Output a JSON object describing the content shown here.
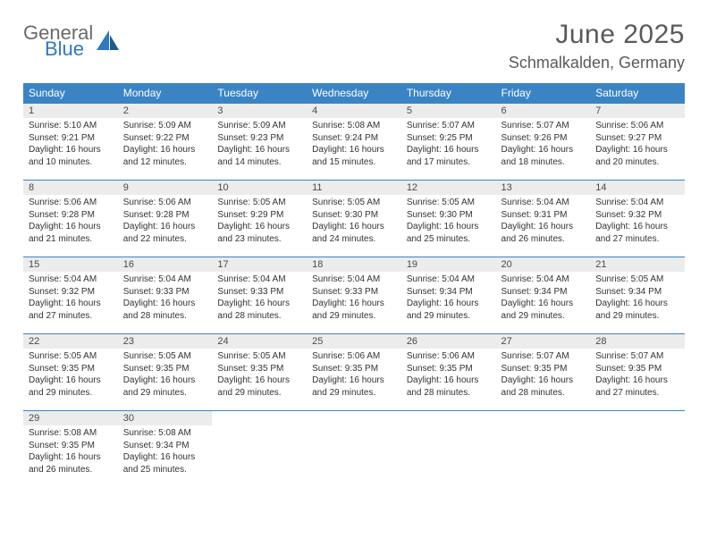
{
  "brand": {
    "name_gray": "General",
    "name_blue": "Blue"
  },
  "header": {
    "title": "June 2025",
    "location": "Schmalkalden, Germany"
  },
  "colors": {
    "header_bg": "#3b84c4",
    "header_text": "#ffffff",
    "daynum_bg": "#ececec",
    "body_text": "#333333",
    "title_text": "#5a5a5a",
    "week_border": "#3b84c4",
    "logo_gray": "#6a6a6a",
    "logo_blue": "#2f78c2"
  },
  "typography": {
    "title_fontsize": 30,
    "location_fontsize": 18,
    "dow_fontsize": 12,
    "daynum_fontsize": 11,
    "body_fontsize": 10
  },
  "days_of_week": [
    "Sunday",
    "Monday",
    "Tuesday",
    "Wednesday",
    "Thursday",
    "Friday",
    "Saturday"
  ],
  "weeks": [
    [
      {
        "n": "1",
        "sr": "Sunrise: 5:10 AM",
        "ss": "Sunset: 9:21 PM",
        "d1": "Daylight: 16 hours",
        "d2": "and 10 minutes."
      },
      {
        "n": "2",
        "sr": "Sunrise: 5:09 AM",
        "ss": "Sunset: 9:22 PM",
        "d1": "Daylight: 16 hours",
        "d2": "and 12 minutes."
      },
      {
        "n": "3",
        "sr": "Sunrise: 5:09 AM",
        "ss": "Sunset: 9:23 PM",
        "d1": "Daylight: 16 hours",
        "d2": "and 14 minutes."
      },
      {
        "n": "4",
        "sr": "Sunrise: 5:08 AM",
        "ss": "Sunset: 9:24 PM",
        "d1": "Daylight: 16 hours",
        "d2": "and 15 minutes."
      },
      {
        "n": "5",
        "sr": "Sunrise: 5:07 AM",
        "ss": "Sunset: 9:25 PM",
        "d1": "Daylight: 16 hours",
        "d2": "and 17 minutes."
      },
      {
        "n": "6",
        "sr": "Sunrise: 5:07 AM",
        "ss": "Sunset: 9:26 PM",
        "d1": "Daylight: 16 hours",
        "d2": "and 18 minutes."
      },
      {
        "n": "7",
        "sr": "Sunrise: 5:06 AM",
        "ss": "Sunset: 9:27 PM",
        "d1": "Daylight: 16 hours",
        "d2": "and 20 minutes."
      }
    ],
    [
      {
        "n": "8",
        "sr": "Sunrise: 5:06 AM",
        "ss": "Sunset: 9:28 PM",
        "d1": "Daylight: 16 hours",
        "d2": "and 21 minutes."
      },
      {
        "n": "9",
        "sr": "Sunrise: 5:06 AM",
        "ss": "Sunset: 9:28 PM",
        "d1": "Daylight: 16 hours",
        "d2": "and 22 minutes."
      },
      {
        "n": "10",
        "sr": "Sunrise: 5:05 AM",
        "ss": "Sunset: 9:29 PM",
        "d1": "Daylight: 16 hours",
        "d2": "and 23 minutes."
      },
      {
        "n": "11",
        "sr": "Sunrise: 5:05 AM",
        "ss": "Sunset: 9:30 PM",
        "d1": "Daylight: 16 hours",
        "d2": "and 24 minutes."
      },
      {
        "n": "12",
        "sr": "Sunrise: 5:05 AM",
        "ss": "Sunset: 9:30 PM",
        "d1": "Daylight: 16 hours",
        "d2": "and 25 minutes."
      },
      {
        "n": "13",
        "sr": "Sunrise: 5:04 AM",
        "ss": "Sunset: 9:31 PM",
        "d1": "Daylight: 16 hours",
        "d2": "and 26 minutes."
      },
      {
        "n": "14",
        "sr": "Sunrise: 5:04 AM",
        "ss": "Sunset: 9:32 PM",
        "d1": "Daylight: 16 hours",
        "d2": "and 27 minutes."
      }
    ],
    [
      {
        "n": "15",
        "sr": "Sunrise: 5:04 AM",
        "ss": "Sunset: 9:32 PM",
        "d1": "Daylight: 16 hours",
        "d2": "and 27 minutes."
      },
      {
        "n": "16",
        "sr": "Sunrise: 5:04 AM",
        "ss": "Sunset: 9:33 PM",
        "d1": "Daylight: 16 hours",
        "d2": "and 28 minutes."
      },
      {
        "n": "17",
        "sr": "Sunrise: 5:04 AM",
        "ss": "Sunset: 9:33 PM",
        "d1": "Daylight: 16 hours",
        "d2": "and 28 minutes."
      },
      {
        "n": "18",
        "sr": "Sunrise: 5:04 AM",
        "ss": "Sunset: 9:33 PM",
        "d1": "Daylight: 16 hours",
        "d2": "and 29 minutes."
      },
      {
        "n": "19",
        "sr": "Sunrise: 5:04 AM",
        "ss": "Sunset: 9:34 PM",
        "d1": "Daylight: 16 hours",
        "d2": "and 29 minutes."
      },
      {
        "n": "20",
        "sr": "Sunrise: 5:04 AM",
        "ss": "Sunset: 9:34 PM",
        "d1": "Daylight: 16 hours",
        "d2": "and 29 minutes."
      },
      {
        "n": "21",
        "sr": "Sunrise: 5:05 AM",
        "ss": "Sunset: 9:34 PM",
        "d1": "Daylight: 16 hours",
        "d2": "and 29 minutes."
      }
    ],
    [
      {
        "n": "22",
        "sr": "Sunrise: 5:05 AM",
        "ss": "Sunset: 9:35 PM",
        "d1": "Daylight: 16 hours",
        "d2": "and 29 minutes."
      },
      {
        "n": "23",
        "sr": "Sunrise: 5:05 AM",
        "ss": "Sunset: 9:35 PM",
        "d1": "Daylight: 16 hours",
        "d2": "and 29 minutes."
      },
      {
        "n": "24",
        "sr": "Sunrise: 5:05 AM",
        "ss": "Sunset: 9:35 PM",
        "d1": "Daylight: 16 hours",
        "d2": "and 29 minutes."
      },
      {
        "n": "25",
        "sr": "Sunrise: 5:06 AM",
        "ss": "Sunset: 9:35 PM",
        "d1": "Daylight: 16 hours",
        "d2": "and 29 minutes."
      },
      {
        "n": "26",
        "sr": "Sunrise: 5:06 AM",
        "ss": "Sunset: 9:35 PM",
        "d1": "Daylight: 16 hours",
        "d2": "and 28 minutes."
      },
      {
        "n": "27",
        "sr": "Sunrise: 5:07 AM",
        "ss": "Sunset: 9:35 PM",
        "d1": "Daylight: 16 hours",
        "d2": "and 28 minutes."
      },
      {
        "n": "28",
        "sr": "Sunrise: 5:07 AM",
        "ss": "Sunset: 9:35 PM",
        "d1": "Daylight: 16 hours",
        "d2": "and 27 minutes."
      }
    ],
    [
      {
        "n": "29",
        "sr": "Sunrise: 5:08 AM",
        "ss": "Sunset: 9:35 PM",
        "d1": "Daylight: 16 hours",
        "d2": "and 26 minutes."
      },
      {
        "n": "30",
        "sr": "Sunrise: 5:08 AM",
        "ss": "Sunset: 9:34 PM",
        "d1": "Daylight: 16 hours",
        "d2": "and 25 minutes."
      },
      null,
      null,
      null,
      null,
      null
    ]
  ]
}
